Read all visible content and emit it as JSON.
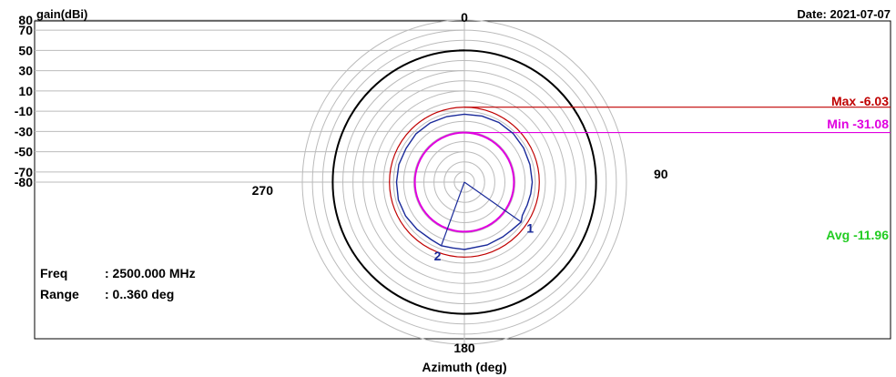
{
  "header": {
    "ylabel": "gain(dBi)",
    "date": "Date: 2021-07-07"
  },
  "info": {
    "freq_label": "Freq",
    "freq_value": ": 2500.000 MHz",
    "range_label": "Range",
    "range_value": ": 0..360 deg"
  },
  "chart_data": {
    "type": "line",
    "coordinate_system": "polar",
    "title": "",
    "xlabel": "Azimuth (deg)",
    "ylabel": "gain(dBi)",
    "angle_range": [
      0,
      360
    ],
    "angle_ticks": [
      "0",
      "90",
      "180",
      "270"
    ],
    "radial_ticks": [
      "80",
      "70",
      "50",
      "30",
      "10",
      "-10",
      "-30",
      "-50",
      "-70",
      "-80"
    ],
    "radial_tick_values": [
      80,
      70,
      50,
      30,
      10,
      -10,
      -30,
      -50,
      -70,
      -80
    ],
    "rlim": [
      -80,
      80
    ],
    "grid": true,
    "legend_position": "right",
    "stats": [
      {
        "name": "Max",
        "label": "Max -6.03",
        "value": -6.03,
        "color": "#c00000"
      },
      {
        "name": "Min",
        "label": "Min -31.08",
        "value": -31.08,
        "color": "#e000e0"
      },
      {
        "name": "Avg",
        "label": "Avg -11.96",
        "value": -11.96,
        "color": "#22cc22"
      }
    ],
    "markers": [
      {
        "label": "1",
        "angle": 125,
        "value": -11.5
      },
      {
        "label": "2",
        "angle": 200,
        "value": -13.2
      }
    ],
    "reference_circle_value": 50,
    "series": [
      {
        "color": "#1a2a9a",
        "angles": [
          0,
          15,
          30,
          45,
          60,
          75,
          90,
          100,
          110,
          120,
          125,
          135,
          145,
          160,
          180,
          190,
          200,
          210,
          225,
          240,
          255,
          270,
          285,
          300,
          315,
          330,
          345
        ],
        "values": [
          -13,
          -12.5,
          -12,
          -12,
          -12.5,
          -13,
          -13,
          -13.5,
          -14,
          -14,
          -11.5,
          -13.5,
          -14,
          -14,
          -13.5,
          -14,
          -13.2,
          -14.5,
          -14,
          -13,
          -12.5,
          -13,
          -13,
          -13.5,
          -12.5,
          -12.5,
          -13
        ]
      }
    ]
  }
}
